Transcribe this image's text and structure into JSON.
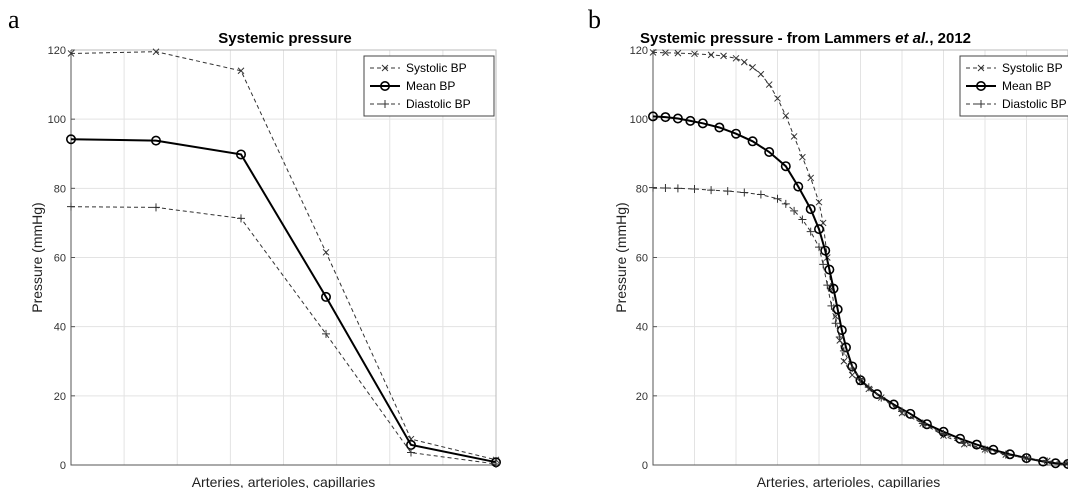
{
  "chart_data": [
    {
      "panel_letter": "a",
      "type": "line",
      "title": "Systemic pressure",
      "xlabel": "Arteries, arterioles, capillaries",
      "ylabel": "Pressure (mmHg)",
      "ylim": [
        0,
        120
      ],
      "yticks": [
        "0",
        "20",
        "40",
        "60",
        "80",
        "100",
        "120"
      ],
      "xlim": [
        0,
        10
      ],
      "grid": true,
      "legend_position": "top-right",
      "series": [
        {
          "name": "Systolic BP",
          "style": "dashed",
          "marker": "x",
          "color": "#333333",
          "x": [
            0,
            2,
            4,
            6,
            8,
            10
          ],
          "y": [
            119,
            119.5,
            114,
            61.5,
            7.5,
            1.5
          ]
        },
        {
          "name": "Mean BP",
          "style": "solid",
          "marker": "o",
          "color": "#000000",
          "x": [
            0,
            2,
            4,
            6,
            8,
            10
          ],
          "y": [
            94.2,
            93.8,
            89.8,
            48.6,
            5.8,
            0.8
          ]
        },
        {
          "name": "Diastolic BP",
          "style": "dashed",
          "marker": "+",
          "color": "#333333",
          "x": [
            0,
            2,
            4,
            6,
            8,
            10
          ],
          "y": [
            74.7,
            74.5,
            71.3,
            37.9,
            3.6,
            0.3
          ]
        }
      ]
    },
    {
      "panel_letter": "b",
      "type": "line",
      "title_parts": [
        "Systemic pressure - from Lammers ",
        "et al.",
        ", 2012"
      ],
      "xlabel": "Arteries, arterioles, capillaries",
      "ylabel": "Pressure (mmHg)",
      "ylim": [
        0,
        120
      ],
      "yticks": [
        "0",
        "20",
        "40",
        "60",
        "80",
        "100",
        "120"
      ],
      "xlim": [
        0,
        1
      ],
      "grid": true,
      "legend_position": "top-right",
      "series": [
        {
          "name": "Systolic BP",
          "style": "dashed",
          "marker": "x",
          "color": "#333333",
          "x": [
            0.0,
            0.03,
            0.06,
            0.1,
            0.14,
            0.17,
            0.2,
            0.22,
            0.24,
            0.26,
            0.28,
            0.3,
            0.32,
            0.34,
            0.36,
            0.38,
            0.4,
            0.41,
            0.42,
            0.43,
            0.44,
            0.45,
            0.46,
            0.48,
            0.5,
            0.52,
            0.55,
            0.6,
            0.65,
            0.7,
            0.75,
            0.8,
            0.85,
            0.9,
            0.95,
            1.0
          ],
          "y": [
            119.3,
            119.2,
            119.1,
            118.9,
            118.6,
            118.3,
            117.6,
            116.5,
            115,
            113,
            110,
            106,
            101,
            95,
            89,
            83,
            76,
            70,
            60,
            51,
            43,
            36,
            30,
            26,
            24,
            22,
            19.5,
            15,
            12,
            8.5,
            6,
            4.5,
            3,
            2,
            1.2,
            0.6
          ]
        },
        {
          "name": "Mean BP",
          "style": "solid",
          "marker": "o",
          "color": "#000000",
          "x": [
            0.0,
            0.03,
            0.06,
            0.09,
            0.12,
            0.16,
            0.2,
            0.24,
            0.28,
            0.32,
            0.35,
            0.38,
            0.4,
            0.415,
            0.425,
            0.435,
            0.445,
            0.455,
            0.465,
            0.48,
            0.5,
            0.54,
            0.58,
            0.62,
            0.66,
            0.7,
            0.74,
            0.78,
            0.82,
            0.86,
            0.9,
            0.94,
            0.97,
            1.0
          ],
          "y": [
            100.8,
            100.6,
            100.2,
            99.5,
            98.8,
            97.6,
            95.8,
            93.6,
            90.5,
            86.4,
            80.5,
            74,
            68.2,
            62,
            56.5,
            51,
            45,
            39,
            34,
            28.5,
            24.5,
            20.5,
            17.5,
            14.8,
            11.8,
            9.6,
            7.6,
            5.9,
            4.4,
            3.1,
            2.0,
            1.0,
            0.5,
            0.3
          ]
        },
        {
          "name": "Diastolic BP",
          "style": "dashed",
          "marker": "+",
          "color": "#333333",
          "x": [
            0.0,
            0.03,
            0.06,
            0.1,
            0.14,
            0.18,
            0.22,
            0.26,
            0.3,
            0.32,
            0.34,
            0.36,
            0.38,
            0.4,
            0.41,
            0.42,
            0.43,
            0.44,
            0.45,
            0.46,
            0.48,
            0.5,
            0.52,
            0.55,
            0.6,
            0.65,
            0.7,
            0.75,
            0.8,
            0.85,
            0.9,
            0.95,
            1.0
          ],
          "y": [
            80.2,
            80.1,
            80.0,
            79.8,
            79.5,
            79.2,
            78.8,
            78.2,
            77,
            75.5,
            73.5,
            71,
            67.5,
            63,
            58,
            52,
            46,
            41,
            37,
            33,
            28,
            25,
            22.5,
            19.5,
            15.5,
            12,
            9,
            6.5,
            4.5,
            3,
            2,
            1,
            0.3
          ]
        }
      ]
    }
  ]
}
